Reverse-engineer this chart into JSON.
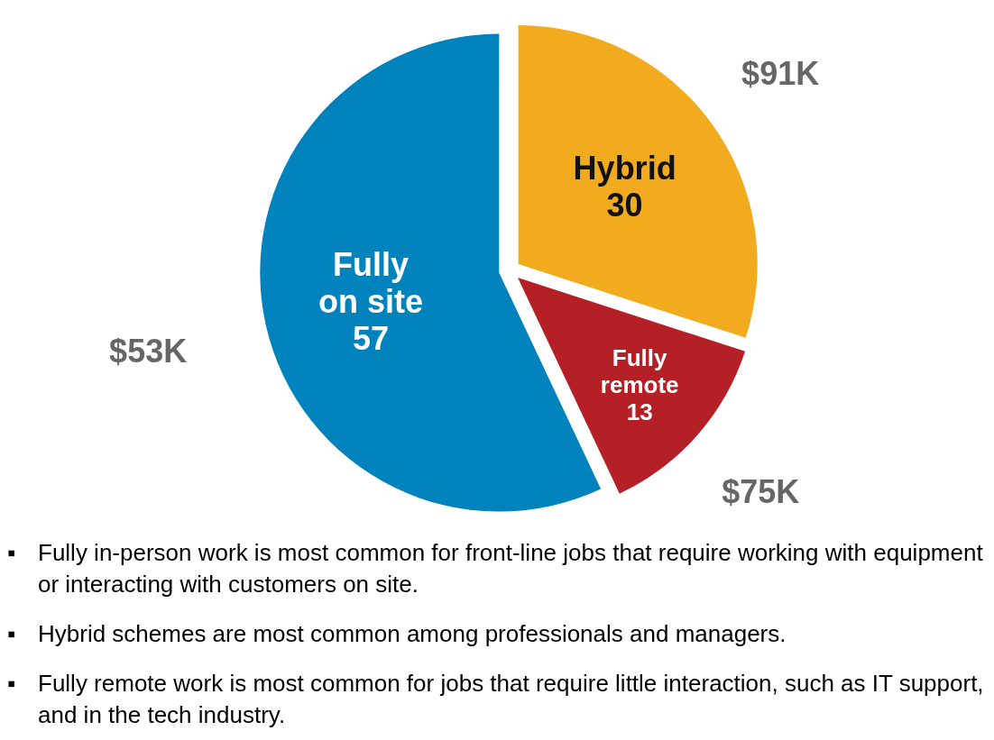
{
  "chart_data": {
    "type": "pie",
    "categories": [
      "Hybrid",
      "Fully remote",
      "Fully on site"
    ],
    "values": [
      30,
      13,
      57
    ],
    "colors": [
      "#f2ab1e",
      "#b42025",
      "#0083bd"
    ],
    "data_labels": true,
    "annotations": [
      {
        "text": "$91K",
        "x": "Hybrid"
      },
      {
        "text": "$75K",
        "x": "Fully remote"
      },
      {
        "text": "$53K",
        "x": "Fully on site"
      },
      "▪ Fully in-person work is most common for front-line jobs that require working with equipment or interacting with customers on site.",
      "▪ Hybrid schemes are most common among professionals and managers.",
      "▪ Fully remote work is most common for jobs that require little interaction, such as IT support, and in the tech industry."
    ]
  }
}
